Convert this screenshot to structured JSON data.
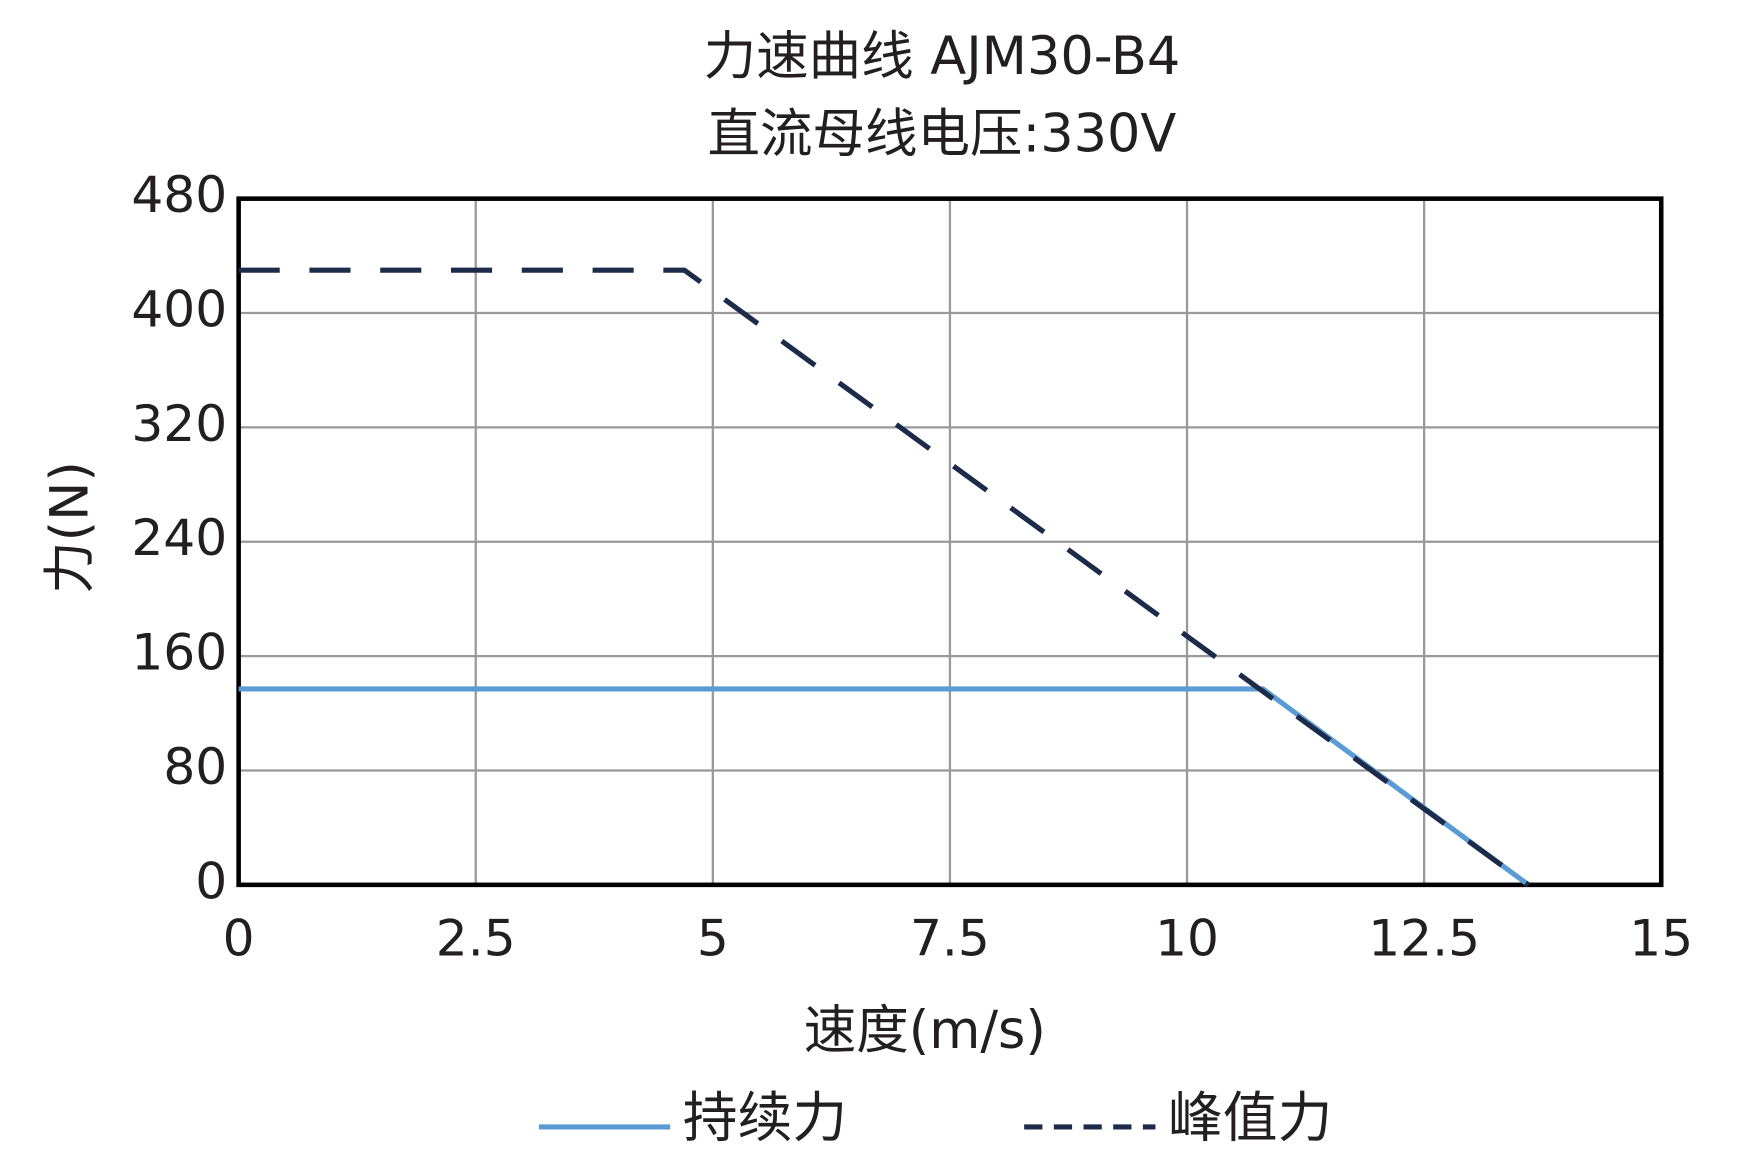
{
  "chart_data": {
    "type": "line",
    "title": "力速曲线 AJM30-B4",
    "subtitle": "直流母线电压:330V",
    "x_label": "速度(m/s)",
    "y_label": "力(N)",
    "series": [
      {
        "name": "持续力",
        "color": "#5b9bd5",
        "style": "solid",
        "x": [
          0,
          10.8,
          13.6
        ],
        "values": [
          137,
          137,
          0
        ]
      },
      {
        "name": "峰值力",
        "color": "#1c2b4a",
        "style": "dashed",
        "x": [
          0,
          4.7,
          13.6
        ],
        "values": [
          430,
          430,
          0
        ]
      }
    ],
    "xlim": [
      0,
      15
    ],
    "xticks": [
      0,
      2.5,
      5,
      7.5,
      10,
      12.5,
      15
    ],
    "ylim": [
      0,
      480
    ],
    "yticks": [
      0,
      80,
      160,
      240,
      320,
      400,
      480
    ],
    "grid": true,
    "legend": "bottom"
  }
}
